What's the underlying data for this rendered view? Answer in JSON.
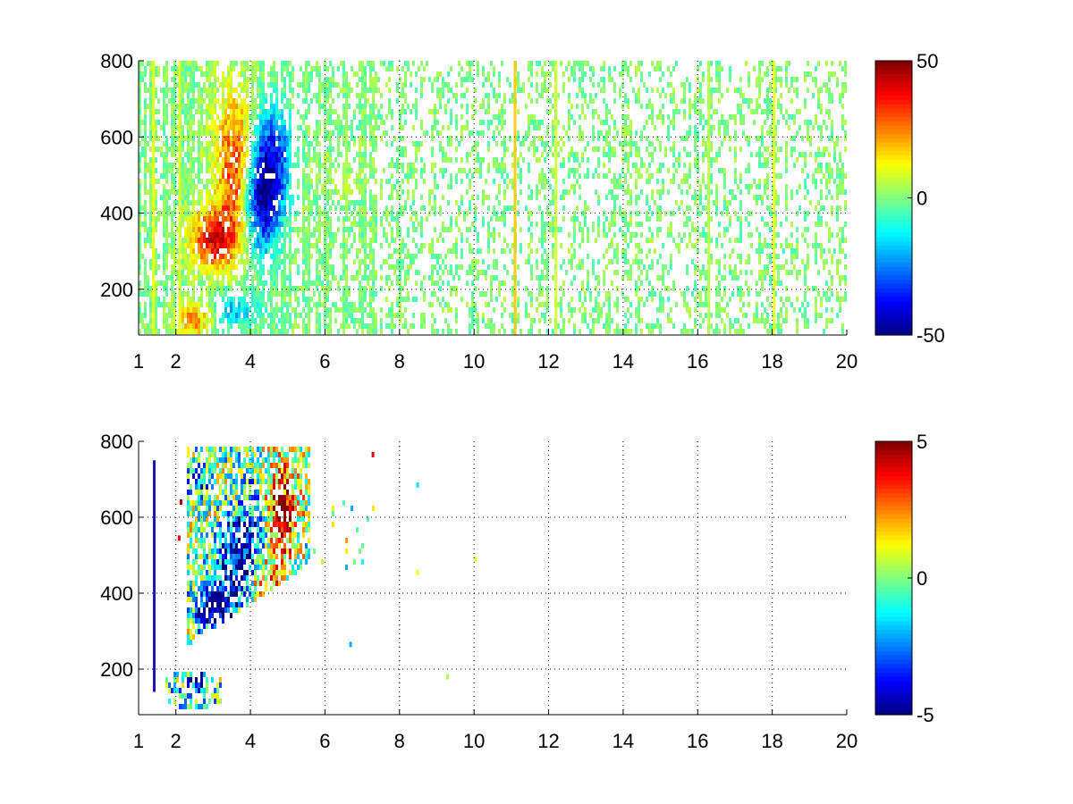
{
  "chart_data": [
    {
      "type": "heatmap",
      "title": "",
      "xlabel": "",
      "ylabel": "",
      "xlim": [
        1,
        20
      ],
      "ylim": [
        80,
        800
      ],
      "x_ticks": [
        "1",
        "2",
        "4",
        "6",
        "8",
        "10",
        "12",
        "14",
        "16",
        "18",
        "20"
      ],
      "y_ticks": [
        "200",
        "400",
        "600",
        "800"
      ],
      "grid": true,
      "colorbar": {
        "min": -50,
        "max": 50,
        "ticks": [
          "50",
          "0",
          "-50"
        ],
        "colormap": "jet"
      },
      "density": 0.42,
      "seed": 11,
      "blobs": [
        {
          "x": 3.0,
          "y": 330,
          "sx": 0.45,
          "sy": 55,
          "v": 36
        },
        {
          "x": 3.6,
          "y": 480,
          "sx": 0.35,
          "sy": 110,
          "v": 30
        },
        {
          "x": 3.5,
          "y": 650,
          "sx": 0.45,
          "sy": 110,
          "v": 10
        },
        {
          "x": 4.3,
          "y": 430,
          "sx": 0.35,
          "sy": 90,
          "v": -44
        },
        {
          "x": 4.6,
          "y": 560,
          "sx": 0.35,
          "sy": 90,
          "v": -30
        },
        {
          "x": 2.5,
          "y": 120,
          "sx": 0.35,
          "sy": 35,
          "v": 22
        },
        {
          "x": 3.6,
          "y": 145,
          "sx": 0.45,
          "sy": 30,
          "v": -18
        },
        {
          "x": 6.3,
          "y": 500,
          "sx": 0.6,
          "sy": 60,
          "v": 4
        }
      ],
      "active_region": [
        {
          "x": [
            1.0,
            7.3
          ],
          "y": [
            80,
            800
          ],
          "p": 0.85
        },
        {
          "x": [
            7.3,
            20.0
          ],
          "y": [
            80,
            800
          ],
          "p": 0.42
        }
      ],
      "stripes": [
        {
          "x": 1.4,
          "v": 12
        },
        {
          "x": 2.1,
          "v": 10
        },
        {
          "x": 11.1,
          "v": 18
        },
        {
          "x": 16.3,
          "v": 6
        },
        {
          "x": 18.05,
          "v": 10
        },
        {
          "x": 12.2,
          "v": 8
        }
      ]
    },
    {
      "type": "heatmap",
      "title": "",
      "xlabel": "",
      "ylabel": "",
      "xlim": [
        1,
        20
      ],
      "ylim": [
        80,
        800
      ],
      "x_ticks": [
        "1",
        "2",
        "4",
        "6",
        "8",
        "10",
        "12",
        "14",
        "16",
        "18",
        "20"
      ],
      "y_ticks": [
        "200",
        "400",
        "600",
        "800"
      ],
      "grid": true,
      "colorbar": {
        "min": -5,
        "max": 5,
        "ticks": [
          "5",
          "0",
          "-5"
        ],
        "colormap": "jet"
      },
      "density": 0.0,
      "seed": 29,
      "blobs": [
        {
          "x": 3.0,
          "y": 360,
          "sx": 0.35,
          "sy": 40,
          "v": -4.6
        },
        {
          "x": 3.6,
          "y": 470,
          "sx": 0.35,
          "sy": 70,
          "v": -3.2
        },
        {
          "x": 4.1,
          "y": 560,
          "sx": 0.4,
          "sy": 100,
          "v": -2.2
        },
        {
          "x": 4.8,
          "y": 620,
          "sx": 0.3,
          "sy": 80,
          "v": 3.8
        },
        {
          "x": 4.4,
          "y": 420,
          "sx": 0.4,
          "sy": 60,
          "v": 2.5
        },
        {
          "x": 2.6,
          "y": 700,
          "sx": 0.3,
          "sy": 40,
          "v": -1.8
        },
        {
          "x": 2.5,
          "y": 130,
          "sx": 0.45,
          "sy": 30,
          "v": -1.2
        },
        {
          "x": 2.6,
          "y": 175,
          "sx": 0.15,
          "sy": 15,
          "v": -4.5
        }
      ],
      "active_region": [
        {
          "x": [
            2.3,
            5.6
          ],
          "y": [
            260,
            790
          ],
          "p": 0.72,
          "slant": true
        },
        {
          "x": [
            1.7,
            3.2
          ],
          "y": [
            90,
            190
          ],
          "p": 0.5
        },
        {
          "x": [
            2.6,
            3.1
          ],
          "y": [
            640,
            760
          ],
          "p": 0.35
        },
        {
          "x": [
            5.6,
            7.3
          ],
          "y": [
            460,
            640
          ],
          "p": 0.06
        }
      ],
      "stripes": [
        {
          "x": 1.42,
          "v": -4.5,
          "y": [
            140,
            750
          ]
        }
      ],
      "specks": [
        {
          "x": 8.5,
          "y": 685,
          "v": -1.5
        },
        {
          "x": 10.05,
          "y": 490,
          "v": 1.0
        },
        {
          "x": 9.3,
          "y": 180,
          "v": 0.5
        },
        {
          "x": 6.7,
          "y": 265,
          "v": -2.0
        },
        {
          "x": 7.3,
          "y": 765,
          "v": 4.0
        },
        {
          "x": 8.5,
          "y": 455,
          "v": 1.2
        },
        {
          "x": 2.1,
          "y": 545,
          "v": 4.0
        },
        {
          "x": 2.15,
          "y": 640,
          "v": 4.5
        }
      ]
    }
  ]
}
